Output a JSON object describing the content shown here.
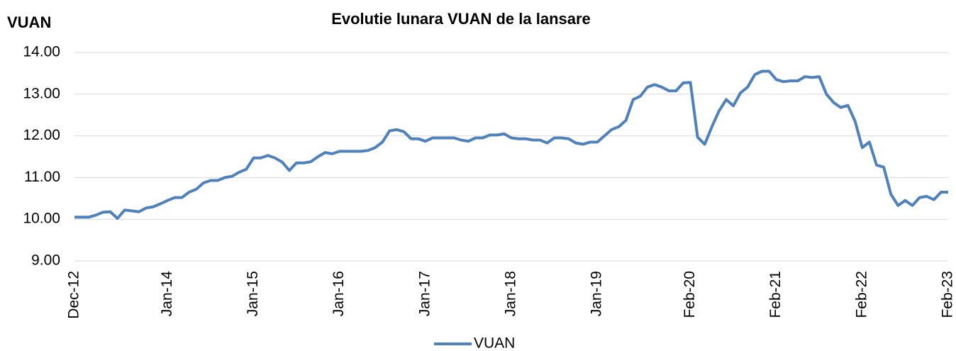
{
  "chart_data": {
    "type": "line",
    "title": "Evolutie lunara VUAN de la lansare",
    "y_label": "VUAN",
    "categories": [
      "Dec-12",
      null,
      null,
      null,
      null,
      null,
      null,
      null,
      null,
      null,
      null,
      null,
      null,
      "Jan-14",
      null,
      null,
      null,
      null,
      null,
      null,
      null,
      null,
      null,
      null,
      null,
      "Jan-15",
      null,
      null,
      null,
      null,
      null,
      null,
      null,
      null,
      null,
      null,
      null,
      "Jan-16",
      null,
      null,
      null,
      null,
      null,
      null,
      null,
      null,
      null,
      null,
      null,
      "Jan-17",
      null,
      null,
      null,
      null,
      null,
      null,
      null,
      null,
      null,
      null,
      null,
      "Jan-18",
      null,
      null,
      null,
      null,
      null,
      null,
      null,
      null,
      null,
      null,
      null,
      "Jan-19",
      null,
      null,
      null,
      null,
      null,
      null,
      null,
      null,
      null,
      null,
      null,
      null,
      "Feb-20",
      null,
      null,
      null,
      null,
      null,
      null,
      null,
      null,
      null,
      null,
      null,
      "Feb-21",
      null,
      null,
      null,
      null,
      null,
      null,
      null,
      null,
      null,
      null,
      null,
      "Feb-22",
      null,
      null,
      null,
      null,
      null,
      null,
      null,
      null,
      null,
      null,
      null,
      "Feb-23"
    ],
    "series": [
      {
        "name": "VUAN",
        "color": "#4f81bd",
        "values": [
          10.05,
          10.05,
          10.05,
          10.1,
          10.17,
          10.18,
          10.02,
          10.22,
          10.2,
          10.18,
          10.27,
          10.3,
          10.37,
          10.45,
          10.52,
          10.52,
          10.65,
          10.72,
          10.87,
          10.93,
          10.93,
          11.0,
          11.03,
          11.13,
          11.2,
          11.47,
          11.47,
          11.53,
          11.47,
          11.37,
          11.17,
          11.35,
          11.35,
          11.38,
          11.5,
          11.6,
          11.57,
          11.63,
          11.63,
          11.63,
          11.63,
          11.65,
          11.72,
          11.85,
          12.12,
          12.15,
          12.1,
          11.93,
          11.93,
          11.87,
          11.95,
          11.95,
          11.95,
          11.95,
          11.9,
          11.87,
          11.95,
          11.95,
          12.02,
          12.02,
          12.05,
          11.95,
          11.93,
          11.93,
          11.9,
          11.9,
          11.83,
          11.95,
          11.95,
          11.93,
          11.83,
          11.8,
          11.85,
          11.85,
          12.0,
          12.15,
          12.22,
          12.37,
          12.87,
          12.95,
          13.17,
          13.23,
          13.17,
          13.08,
          13.08,
          13.27,
          13.28,
          11.97,
          11.8,
          12.22,
          12.6,
          12.87,
          12.72,
          13.03,
          13.17,
          13.47,
          13.55,
          13.55,
          13.35,
          13.3,
          13.32,
          13.32,
          13.42,
          13.4,
          13.42,
          13.0,
          12.8,
          12.68,
          12.73,
          12.35,
          11.72,
          11.85,
          11.3,
          11.25,
          10.6,
          10.33,
          10.45,
          10.33,
          10.52,
          10.55,
          10.47,
          10.65,
          10.65
        ]
      }
    ],
    "ylim": [
      9,
      14
    ],
    "yticks": [
      {
        "value": 9,
        "label": "9.00"
      },
      {
        "value": 10,
        "label": "10.00"
      },
      {
        "value": 11,
        "label": "11.00"
      },
      {
        "value": 12,
        "label": "12.00"
      },
      {
        "value": 13,
        "label": "13.00"
      },
      {
        "value": 14,
        "label": "14.00"
      }
    ],
    "grid": true,
    "legend": "bottom"
  }
}
